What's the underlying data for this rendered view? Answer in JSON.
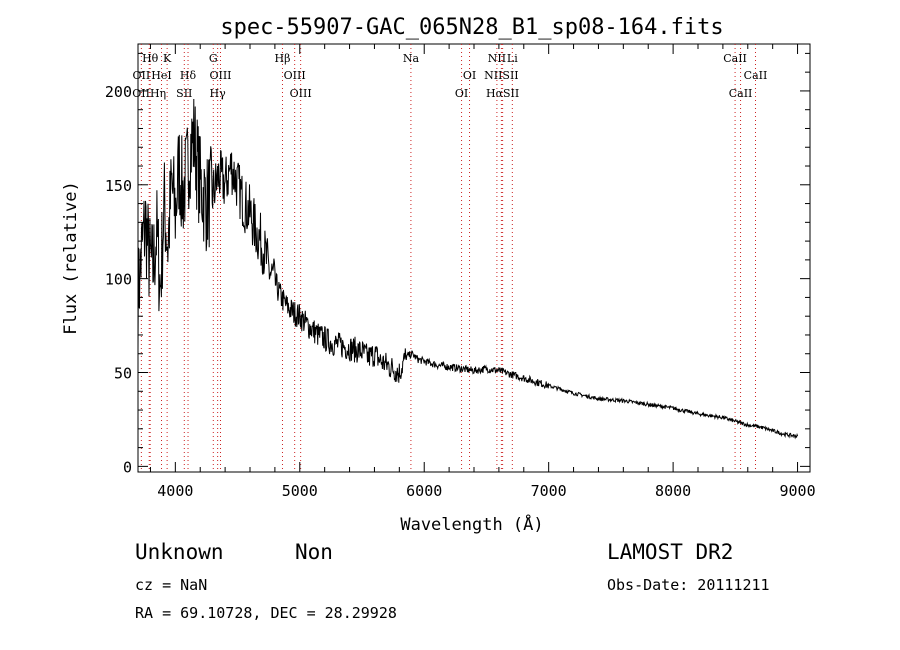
{
  "chart_data": {
    "type": "line",
    "title": "spec-55907-GAC_065N28_B1_sp08-164.fits",
    "xlabel": "Wavelength (Å)",
    "ylabel": "Flux (relative)",
    "xlim": [
      3700,
      9100
    ],
    "ylim": [
      -3,
      225
    ],
    "x_ticks": [
      4000,
      5000,
      6000,
      7000,
      8000,
      9000
    ],
    "x_tick_labels": [
      "4000",
      "5000",
      "6000",
      "7000",
      "8000",
      "9000"
    ],
    "y_ticks": [
      0,
      50,
      100,
      150,
      200
    ],
    "y_tick_labels": [
      "0",
      "50",
      "100",
      "150",
      "200"
    ],
    "grid": false,
    "series": [
      {
        "x": [
          3700,
          3730,
          3760,
          3790,
          3820,
          3850,
          3880,
          3910,
          3940,
          3970,
          4000,
          4030,
          4060,
          4090,
          4120,
          4150,
          4200,
          4250,
          4300,
          4350,
          4400,
          4450,
          4500,
          4550,
          4600,
          4650,
          4700,
          4750,
          4800,
          4850,
          4900,
          4950,
          5000,
          5050,
          5100,
          5150,
          5200,
          5250,
          5300,
          5350,
          5400,
          5450,
          5500,
          5550,
          5600,
          5650,
          5700,
          5750,
          5800,
          5850,
          5900,
          5950,
          6000,
          6100,
          6200,
          6300,
          6400,
          6500,
          6600,
          6700,
          6800,
          6900,
          7000,
          7200,
          7400,
          7600,
          7800,
          8000,
          8200,
          8400,
          8500,
          8600,
          8700,
          8800,
          8900,
          9000
        ],
        "y": [
          90,
          115,
          130,
          110,
          105,
          125,
          95,
          140,
          118,
          150,
          135,
          160,
          145,
          155,
          170,
          175,
          150,
          140,
          145,
          155,
          150,
          160,
          150,
          140,
          135,
          125,
          118,
          105,
          98,
          90,
          85,
          82,
          80,
          76,
          73,
          70,
          68,
          66,
          65,
          64,
          63,
          62,
          61,
          58,
          60,
          56,
          54,
          52,
          50,
          58,
          60,
          57,
          56,
          54,
          53,
          52,
          51,
          52,
          51,
          49,
          47,
          45,
          43,
          39,
          36,
          35,
          33,
          31,
          28,
          26,
          24,
          22,
          21,
          19,
          17,
          16
        ]
      }
    ],
    "emission_lines": [
      {
        "label": "Hθ",
        "x": 3798,
        "row": 1
      },
      {
        "label": "K",
        "x": 3934,
        "row": 1
      },
      {
        "label": "G",
        "x": 4305,
        "row": 1
      },
      {
        "label": "Hβ",
        "x": 4861,
        "row": 1
      },
      {
        "label": "Na",
        "x": 5893,
        "row": 1
      },
      {
        "label": "NII",
        "x": 6584,
        "row": 1
      },
      {
        "label": "Li",
        "x": 6708,
        "row": 1
      },
      {
        "label": "CaII",
        "x": 8498,
        "row": 1
      },
      {
        "label": "OII",
        "x": 3727,
        "row": 2
      },
      {
        "label": "HeI",
        "x": 3889,
        "row": 2
      },
      {
        "label": "Hδ",
        "x": 4102,
        "row": 2
      },
      {
        "label": "OIII",
        "x": 4363,
        "row": 2
      },
      {
        "label": "OIII",
        "x": 4959,
        "row": 2
      },
      {
        "label": "OI",
        "x": 6364,
        "row": 2
      },
      {
        "label": "NIISII",
        "x": 6620,
        "row": 2
      },
      {
        "label": "CaII",
        "x": 8662,
        "row": 2
      },
      {
        "label": "OIIHη",
        "x": 3790,
        "row": 3
      },
      {
        "label": "SII",
        "x": 4072,
        "row": 3
      },
      {
        "label": "Hγ",
        "x": 4340,
        "row": 3
      },
      {
        "label": "OIII",
        "x": 5007,
        "row": 3
      },
      {
        "label": "OI",
        "x": 6300,
        "row": 3
      },
      {
        "label": "HαSII",
        "x": 6630,
        "row": 3
      },
      {
        "label": "CaII",
        "x": 8542,
        "row": 3
      }
    ]
  },
  "info": {
    "class": "Unknown",
    "subclass": "Non",
    "survey": "LAMOST DR2",
    "cz": "cz = NaN",
    "obs_date": "Obs-Date: 20111211",
    "coords": "RA =  69.10728, DEC =  28.29928"
  }
}
